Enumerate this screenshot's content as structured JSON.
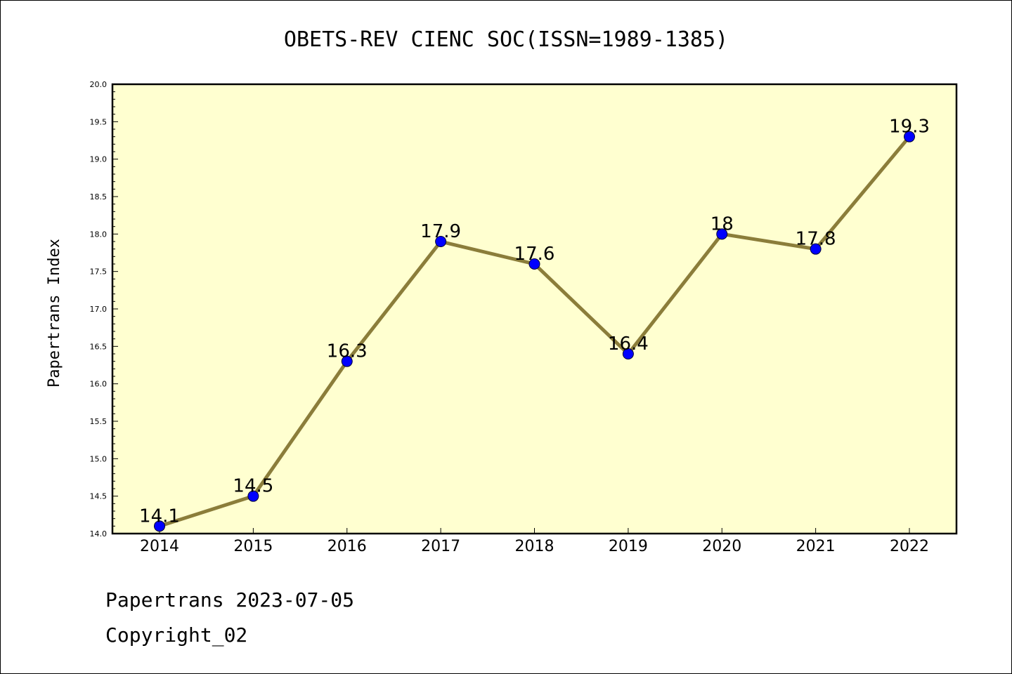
{
  "chart_data": {
    "type": "line",
    "title": "OBETS-REV CIENC SOC(ISSN=1989-1385)",
    "xlabel": "",
    "ylabel": "Papertrans Index",
    "categories": [
      "2014",
      "2015",
      "2016",
      "2017",
      "2018",
      "2019",
      "2020",
      "2021",
      "2022"
    ],
    "values": [
      14.1,
      14.5,
      16.3,
      17.9,
      17.6,
      16.4,
      18,
      17.8,
      19.3
    ],
    "data_labels": [
      "14.1",
      "14.5",
      "16.3",
      "17.9",
      "17.6",
      "16.4",
      "18",
      "17.8",
      "19.3"
    ],
    "ylim": [
      14.0,
      20.0
    ],
    "yticks": [
      "14.0",
      "14.5",
      "15.0",
      "15.5",
      "16.0",
      "16.5",
      "17.0",
      "17.5",
      "18.0",
      "18.5",
      "19.0",
      "19.5",
      "20.0"
    ],
    "grid": false,
    "colors": {
      "plot_background": "#ffffd0",
      "line": "#8b7d3a",
      "marker": "#0000ff"
    }
  },
  "footer": {
    "line1": "Papertrans 2023-07-05",
    "line2": "Copyright_02"
  }
}
